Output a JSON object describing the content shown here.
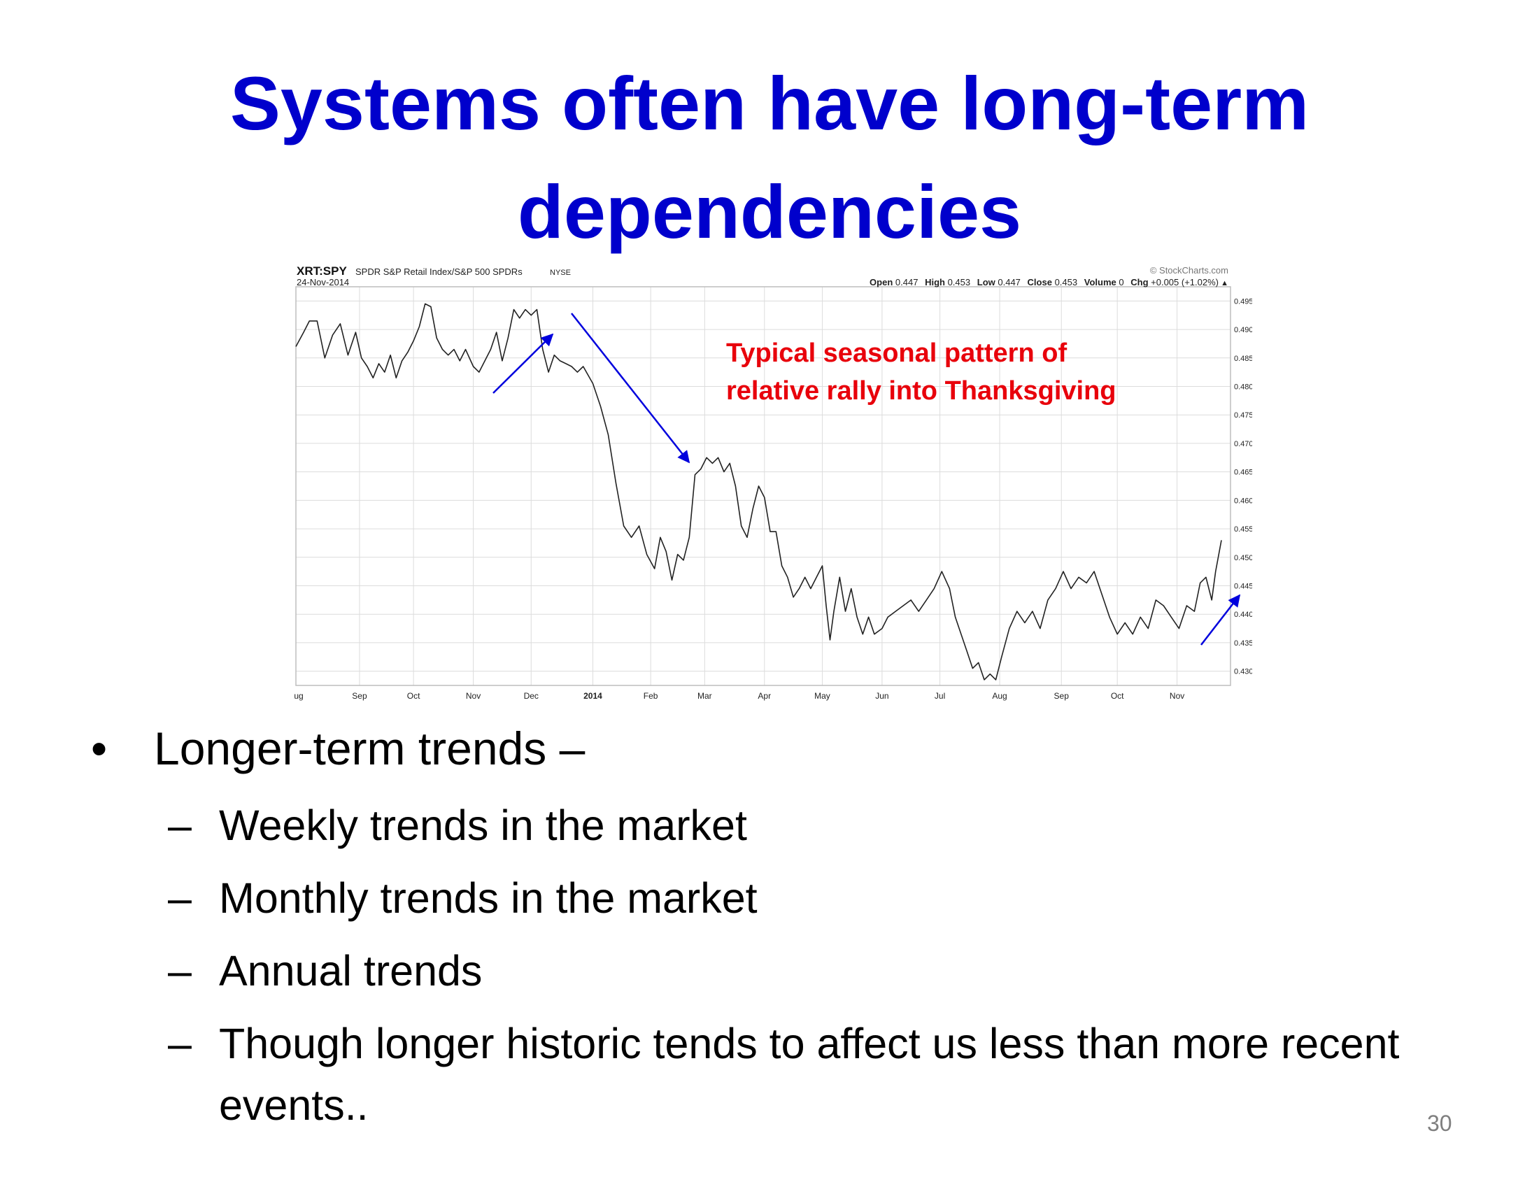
{
  "title": {
    "line1": "Systems often have long-term",
    "line2": "dependencies"
  },
  "chart_data": {
    "type": "line",
    "symbol": "XRT:SPY",
    "description": "SPDR S&P Retail Index/S&P 500 SPDRs",
    "exchange": "NYSE",
    "date": "24-Nov-2014",
    "source": "© StockCharts.com",
    "quote": [
      {
        "label": "Open",
        "value": "0.447"
      },
      {
        "label": "High",
        "value": "0.453"
      },
      {
        "label": "Low",
        "value": "0.447"
      },
      {
        "label": "Close",
        "value": "0.453"
      },
      {
        "label": "Volume",
        "value": "0"
      },
      {
        "label": "Chg",
        "value": "+0.005 (+1.02%)"
      }
    ],
    "change_marker": "▲",
    "annotation": [
      "Typical seasonal pattern of",
      "relative rally into Thanksgiving"
    ],
    "annotation_color": "#e8000b",
    "arrow_color": "#0000dd",
    "line_color": "#222222",
    "ylim": [
      0.4275,
      0.4975
    ],
    "y_ticks": [
      0.495,
      0.49,
      0.485,
      0.48,
      0.475,
      0.47,
      0.465,
      0.46,
      0.455,
      0.45,
      0.445,
      0.44,
      0.435,
      0.43
    ],
    "y_tick_labels": [
      "0.495",
      "0.490",
      "0.485",
      "0.480",
      "0.475",
      "0.470",
      "0.465",
      "0.460",
      "0.455",
      "0.450",
      "0.445",
      "0.440",
      "0.435",
      "0.430"
    ],
    "x_range": [
      "2013-08-01",
      "2014-11-24"
    ],
    "x_ticks": [
      {
        "label": "Aug",
        "date": "2013-08-01"
      },
      {
        "label": "Sep",
        "date": "2013-09-03"
      },
      {
        "label": "Oct",
        "date": "2013-10-01"
      },
      {
        "label": "Nov",
        "date": "2013-11-01"
      },
      {
        "label": "Dec",
        "date": "2013-12-01"
      },
      {
        "label": "2014",
        "date": "2014-01-02",
        "bold": true
      },
      {
        "label": "Feb",
        "date": "2014-02-01"
      },
      {
        "label": "Mar",
        "date": "2014-03-01"
      },
      {
        "label": "Apr",
        "date": "2014-04-01"
      },
      {
        "label": "May",
        "date": "2014-05-01"
      },
      {
        "label": "Jun",
        "date": "2014-06-01"
      },
      {
        "label": "Jul",
        "date": "2014-07-01"
      },
      {
        "label": "Aug",
        "date": "2014-08-01"
      },
      {
        "label": "Sep",
        "date": "2014-09-02"
      },
      {
        "label": "Oct",
        "date": "2014-10-01"
      },
      {
        "label": "Nov",
        "date": "2014-11-01"
      }
    ],
    "series": [
      {
        "points": [
          [
            "2013-08-01",
            0.487
          ],
          [
            "2013-08-05",
            0.4895
          ],
          [
            "2013-08-08",
            0.4915
          ],
          [
            "2013-08-12",
            0.4915
          ],
          [
            "2013-08-16",
            0.485
          ],
          [
            "2013-08-20",
            0.489
          ],
          [
            "2013-08-24",
            0.491
          ],
          [
            "2013-08-28",
            0.4855
          ],
          [
            "2013-09-01",
            0.4895
          ],
          [
            "2013-09-04",
            0.485
          ],
          [
            "2013-09-07",
            0.4835
          ],
          [
            "2013-09-10",
            0.4815
          ],
          [
            "2013-09-13",
            0.484
          ],
          [
            "2013-09-16",
            0.4825
          ],
          [
            "2013-09-19",
            0.4855
          ],
          [
            "2013-09-22",
            0.4815
          ],
          [
            "2013-09-25",
            0.4845
          ],
          [
            "2013-09-28",
            0.486
          ],
          [
            "2013-10-01",
            0.488
          ],
          [
            "2013-10-04",
            0.4905
          ],
          [
            "2013-10-07",
            0.4945
          ],
          [
            "2013-10-10",
            0.494
          ],
          [
            "2013-10-13",
            0.4885
          ],
          [
            "2013-10-16",
            0.4865
          ],
          [
            "2013-10-19",
            0.4855
          ],
          [
            "2013-10-22",
            0.4865
          ],
          [
            "2013-10-25",
            0.4845
          ],
          [
            "2013-10-28",
            0.4865
          ],
          [
            "2013-11-01",
            0.4835
          ],
          [
            "2013-11-04",
            0.4825
          ],
          [
            "2013-11-07",
            0.4845
          ],
          [
            "2013-11-10",
            0.4865
          ],
          [
            "2013-11-13",
            0.4895
          ],
          [
            "2013-11-16",
            0.4845
          ],
          [
            "2013-11-19",
            0.4885
          ],
          [
            "2013-11-22",
            0.4935
          ],
          [
            "2013-11-25",
            0.492
          ],
          [
            "2013-11-28",
            0.4935
          ],
          [
            "2013-12-01",
            0.4925
          ],
          [
            "2013-12-04",
            0.4935
          ],
          [
            "2013-12-07",
            0.4865
          ],
          [
            "2013-12-10",
            0.4825
          ],
          [
            "2013-12-13",
            0.4855
          ],
          [
            "2013-12-16",
            0.4845
          ],
          [
            "2013-12-19",
            0.484
          ],
          [
            "2013-12-22",
            0.4835
          ],
          [
            "2013-12-25",
            0.4825
          ],
          [
            "2013-12-28",
            0.4835
          ],
          [
            "2014-01-02",
            0.4805
          ],
          [
            "2014-01-06",
            0.4765
          ],
          [
            "2014-01-10",
            0.4715
          ],
          [
            "2014-01-14",
            0.463
          ],
          [
            "2014-01-18",
            0.4555
          ],
          [
            "2014-01-22",
            0.4535
          ],
          [
            "2014-01-26",
            0.4555
          ],
          [
            "2014-01-30",
            0.4505
          ],
          [
            "2014-02-03",
            0.448
          ],
          [
            "2014-02-06",
            0.4535
          ],
          [
            "2014-02-09",
            0.451
          ],
          [
            "2014-02-12",
            0.446
          ],
          [
            "2014-02-15",
            0.4505
          ],
          [
            "2014-02-18",
            0.4495
          ],
          [
            "2014-02-21",
            0.4535
          ],
          [
            "2014-02-24",
            0.4645
          ],
          [
            "2014-02-27",
            0.4655
          ],
          [
            "2014-03-02",
            0.4675
          ],
          [
            "2014-03-05",
            0.4665
          ],
          [
            "2014-03-08",
            0.4675
          ],
          [
            "2014-03-11",
            0.465
          ],
          [
            "2014-03-14",
            0.4665
          ],
          [
            "2014-03-17",
            0.4625
          ],
          [
            "2014-03-20",
            0.4555
          ],
          [
            "2014-03-23",
            0.4535
          ],
          [
            "2014-03-26",
            0.4585
          ],
          [
            "2014-03-29",
            0.4625
          ],
          [
            "2014-04-01",
            0.4605
          ],
          [
            "2014-04-04",
            0.4545
          ],
          [
            "2014-04-07",
            0.4545
          ],
          [
            "2014-04-10",
            0.4485
          ],
          [
            "2014-04-13",
            0.4465
          ],
          [
            "2014-04-16",
            0.443
          ],
          [
            "2014-04-19",
            0.4445
          ],
          [
            "2014-04-22",
            0.4465
          ],
          [
            "2014-04-25",
            0.4445
          ],
          [
            "2014-04-28",
            0.4465
          ],
          [
            "2014-05-01",
            0.4485
          ],
          [
            "2014-05-03",
            0.4415
          ],
          [
            "2014-05-05",
            0.4355
          ],
          [
            "2014-05-07",
            0.4405
          ],
          [
            "2014-05-10",
            0.4465
          ],
          [
            "2014-05-13",
            0.4405
          ],
          [
            "2014-05-16",
            0.4445
          ],
          [
            "2014-05-19",
            0.4395
          ],
          [
            "2014-05-22",
            0.4365
          ],
          [
            "2014-05-25",
            0.4395
          ],
          [
            "2014-05-28",
            0.4365
          ],
          [
            "2014-06-01",
            0.4375
          ],
          [
            "2014-06-04",
            0.4395
          ],
          [
            "2014-06-08",
            0.4405
          ],
          [
            "2014-06-12",
            0.4415
          ],
          [
            "2014-06-16",
            0.4425
          ],
          [
            "2014-06-20",
            0.4405
          ],
          [
            "2014-06-24",
            0.4425
          ],
          [
            "2014-06-28",
            0.4445
          ],
          [
            "2014-07-02",
            0.4475
          ],
          [
            "2014-07-06",
            0.4445
          ],
          [
            "2014-07-09",
            0.4395
          ],
          [
            "2014-07-12",
            0.4365
          ],
          [
            "2014-07-15",
            0.4335
          ],
          [
            "2014-07-18",
            0.4305
          ],
          [
            "2014-07-21",
            0.4315
          ],
          [
            "2014-07-24",
            0.4285
          ],
          [
            "2014-07-27",
            0.4295
          ],
          [
            "2014-07-30",
            0.4285
          ],
          [
            "2014-08-02",
            0.4325
          ],
          [
            "2014-08-06",
            0.4375
          ],
          [
            "2014-08-10",
            0.4405
          ],
          [
            "2014-08-14",
            0.4385
          ],
          [
            "2014-08-18",
            0.4405
          ],
          [
            "2014-08-22",
            0.4375
          ],
          [
            "2014-08-26",
            0.4425
          ],
          [
            "2014-08-30",
            0.4445
          ],
          [
            "2014-09-03",
            0.4475
          ],
          [
            "2014-09-07",
            0.4445
          ],
          [
            "2014-09-11",
            0.4465
          ],
          [
            "2014-09-15",
            0.4455
          ],
          [
            "2014-09-19",
            0.4475
          ],
          [
            "2014-09-23",
            0.4435
          ],
          [
            "2014-09-27",
            0.4395
          ],
          [
            "2014-10-01",
            0.4365
          ],
          [
            "2014-10-05",
            0.4385
          ],
          [
            "2014-10-09",
            0.4365
          ],
          [
            "2014-10-13",
            0.4395
          ],
          [
            "2014-10-17",
            0.4375
          ],
          [
            "2014-10-21",
            0.4425
          ],
          [
            "2014-10-25",
            0.4415
          ],
          [
            "2014-10-29",
            0.4395
          ],
          [
            "2014-11-02",
            0.4375
          ],
          [
            "2014-11-06",
            0.4415
          ],
          [
            "2014-11-10",
            0.4405
          ],
          [
            "2014-11-13",
            0.4455
          ],
          [
            "2014-11-16",
            0.4465
          ],
          [
            "2014-11-19",
            0.4425
          ],
          [
            "2014-11-21",
            0.4475
          ],
          [
            "2014-11-24",
            0.453
          ]
        ]
      }
    ]
  },
  "bullets": {
    "main": "Longer-term trends –",
    "subs": [
      "Weekly trends in the market",
      "Monthly trends in the market",
      "Annual trends",
      "Though longer historic tends to affect us less than more recent events.."
    ]
  },
  "slide_number": "30"
}
